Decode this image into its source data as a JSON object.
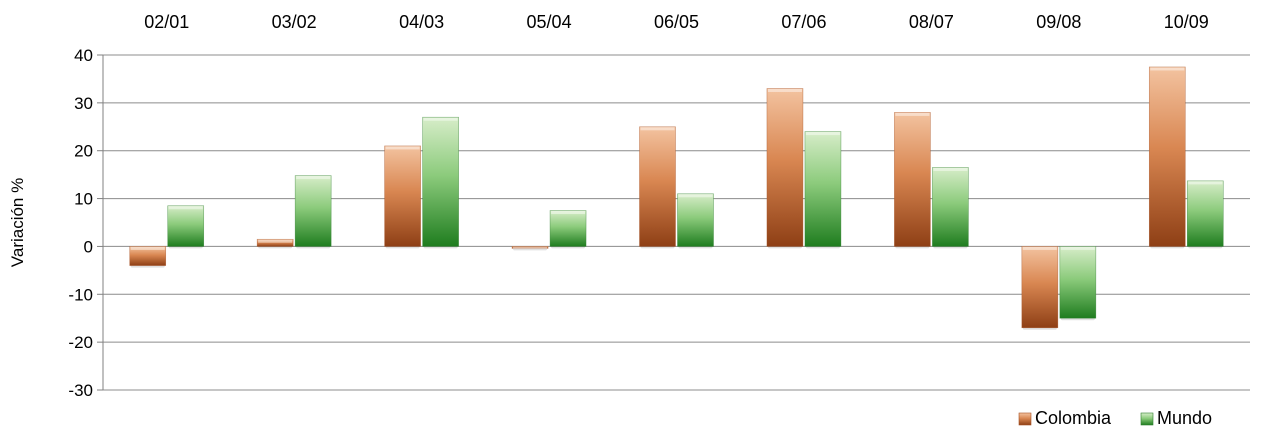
{
  "chart_data": {
    "type": "bar",
    "categories": [
      "02/01",
      "03/02",
      "04/03",
      "05/04",
      "06/05",
      "07/06",
      "08/07",
      "09/08",
      "10/09"
    ],
    "series": [
      {
        "name": "Colombia",
        "values": [
          -4,
          1.5,
          21,
          -0.4,
          25,
          33,
          28,
          -17,
          37.5
        ],
        "color": "#c0632f"
      },
      {
        "name": "Mundo",
        "values": [
          8.5,
          14.8,
          27,
          7.5,
          11,
          24,
          16.5,
          -15,
          13.7
        ],
        "color": "#3c9a3c"
      }
    ],
    "ylabel": "Variación %",
    "ylim": [
      -30,
      40
    ],
    "yticks": [
      40,
      30,
      20,
      10,
      0,
      -10,
      -20,
      -30
    ],
    "ytick_labels": [
      "40",
      "30",
      "20",
      "10",
      "0",
      "-10",
      "-20",
      "-30"
    ],
    "grid": true,
    "category_labels_position": "top",
    "legend_position": "bottom-right"
  }
}
